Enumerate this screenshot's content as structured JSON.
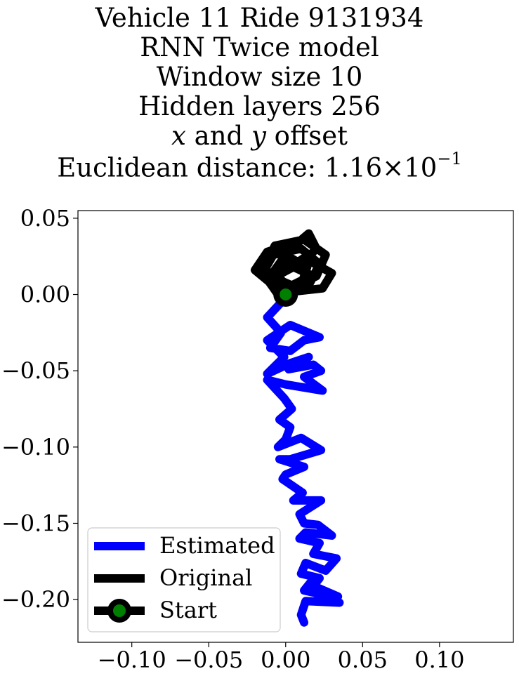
{
  "title_lines": {
    "line1": "Vehicle 11 Ride 9131934",
    "line2": "RNN Twice model",
    "line3": "Window size 10",
    "line4": "Hidden layers 256",
    "line5_var_x": "x",
    "line5_mid": " and ",
    "line5_var_y": "y",
    "line5_tail": " offset",
    "line6_prefix": "Euclidean distance: 1.16",
    "line6_times": "×",
    "line6_base": "10",
    "line6_exp": "−1"
  },
  "chart_data": {
    "type": "line",
    "title": "Vehicle 11 Ride 9131934 RNN Twice model Window size 10 Hidden layers 256 x and y offset Euclidean distance: 1.16×10^-1",
    "xlabel": "",
    "ylabel": "",
    "xlim": [
      -0.135,
      0.148
    ],
    "ylim": [
      -0.228,
      0.055
    ],
    "xticks": [
      -0.1,
      -0.05,
      0.0,
      0.05,
      0.1
    ],
    "xtick_labels": [
      "−0.10",
      "−0.05",
      "0.00",
      "0.05",
      "0.10"
    ],
    "yticks": [
      0.05,
      0.0,
      -0.05,
      -0.1,
      -0.15,
      -0.2
    ],
    "ytick_labels": [
      "0.05",
      "0.00",
      "−0.05",
      "−0.10",
      "−0.15",
      "−0.20"
    ],
    "grid": false,
    "legend_position": "bottom-left",
    "series": [
      {
        "name": "Estimated",
        "color": "#0000ff",
        "x": [
          0.0,
          -0.012,
          -0.003,
          -0.01,
          0.003,
          0.012,
          0.022,
          0.003,
          -0.012,
          -0.001,
          -0.012,
          0.003,
          0.015,
          0.002,
          0.018,
          0.023,
          0.012,
          0.024,
          0.0,
          -0.012,
          -0.001,
          0.004,
          -0.004,
          0.003,
          0.0,
          -0.005,
          0.01,
          0.023,
          0.003,
          -0.004,
          0.012,
          0.0,
          -0.002,
          0.011,
          0.005,
          0.023,
          0.009,
          0.012,
          0.021,
          0.03,
          0.013,
          0.009,
          0.022,
          0.018,
          0.033,
          0.026,
          0.013,
          0.01,
          0.022,
          0.018,
          0.034,
          0.021,
          0.012,
          0.016,
          0.022,
          0.035,
          0.013,
          0.01,
          0.012
        ],
        "y": [
          -0.002,
          -0.015,
          -0.025,
          -0.035,
          -0.037,
          -0.03,
          -0.028,
          -0.02,
          -0.03,
          -0.041,
          -0.052,
          -0.045,
          -0.041,
          -0.049,
          -0.046,
          -0.05,
          -0.054,
          -0.063,
          -0.059,
          -0.056,
          -0.068,
          -0.075,
          -0.082,
          -0.087,
          -0.095,
          -0.1,
          -0.094,
          -0.102,
          -0.108,
          -0.108,
          -0.113,
          -0.118,
          -0.121,
          -0.13,
          -0.135,
          -0.135,
          -0.144,
          -0.15,
          -0.151,
          -0.158,
          -0.156,
          -0.16,
          -0.163,
          -0.17,
          -0.173,
          -0.181,
          -0.176,
          -0.183,
          -0.186,
          -0.191,
          -0.198,
          -0.196,
          -0.194,
          -0.189,
          -0.199,
          -0.202,
          -0.201,
          -0.21,
          -0.215
        ]
      },
      {
        "name": "Original",
        "color": "#000000",
        "x": [
          0.0,
          -0.01,
          0.005,
          0.018,
          0.012,
          -0.005,
          -0.012,
          0.002,
          0.014,
          0.01,
          -0.004,
          -0.015,
          -0.008,
          0.01,
          0.022,
          0.016,
          -0.002,
          -0.014,
          -0.007,
          0.012,
          0.026,
          0.02,
          0.004,
          -0.006,
          0.012,
          0.03,
          0.024,
          0.006,
          -0.008,
          -0.02,
          -0.012,
          0.008,
          0.015,
          0.02,
          0.01,
          0.0,
          -0.01,
          0.004,
          0.012,
          0.0
        ],
        "y": [
          0.0,
          0.01,
          0.018,
          0.012,
          0.004,
          0.0,
          0.01,
          0.022,
          0.018,
          0.006,
          0.002,
          0.014,
          0.026,
          0.03,
          0.02,
          0.008,
          0.002,
          0.018,
          0.032,
          0.036,
          0.026,
          0.012,
          0.004,
          0.012,
          0.024,
          0.014,
          0.004,
          0.002,
          0.006,
          0.016,
          0.028,
          0.034,
          0.04,
          0.03,
          0.02,
          0.026,
          0.012,
          0.006,
          0.01,
          0.0
        ]
      },
      {
        "name": "Start",
        "color": "#000000",
        "marker_face": "#008000",
        "x": [
          0.0
        ],
        "y": [
          0.0
        ]
      }
    ]
  }
}
